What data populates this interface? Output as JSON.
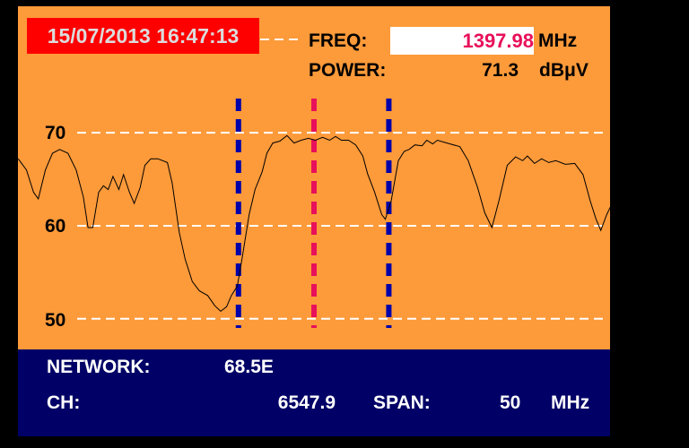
{
  "header": {
    "timestamp": "15/07/2013 16:47:13",
    "freq_label": "FREQ:",
    "freq_value": "1397.98",
    "freq_unit": "MHz",
    "power_label": "POWER:",
    "power_value": "71.3",
    "power_unit": "dBμV"
  },
  "footer": {
    "network_label": "NETWORK:",
    "network_value": "68.5E",
    "ch_label": "CH:",
    "ch_value": "6547.9",
    "span_label": "SPAN:",
    "span_value": "50",
    "span_unit": "MHz"
  },
  "colors": {
    "background": "#fd9a3a",
    "info_panel": "#000066",
    "timestamp_bg": "#ff0000",
    "freq_value": "#e8105a",
    "marker_side": "#0000aa",
    "marker_center": "#e8105a",
    "trace": "#000000",
    "grid": "#ffffff"
  },
  "chart_data": {
    "type": "line",
    "xlim": [
      1372.98,
      1422.98
    ],
    "ylim": [
      46.7,
      83.6
    ],
    "grid": true,
    "y_ticks": [
      {
        "value": 70,
        "label": "70"
      },
      {
        "value": 60,
        "label": "60"
      },
      {
        "value": 50,
        "label": "50"
      }
    ],
    "markers": [
      {
        "x": 1391.6,
        "role": "side",
        "color": "#0000aa"
      },
      {
        "x": 1397.98,
        "role": "center",
        "color": "#e8105a"
      },
      {
        "x": 1404.3,
        "role": "side",
        "color": "#0000aa"
      }
    ],
    "x": [
      1373.0,
      1373.7,
      1374.3,
      1374.7,
      1375.3,
      1375.9,
      1376.5,
      1377.2,
      1377.9,
      1378.5,
      1378.9,
      1379.3,
      1379.8,
      1380.2,
      1380.6,
      1381.0,
      1381.5,
      1381.9,
      1382.4,
      1382.8,
      1383.3,
      1383.7,
      1384.2,
      1384.8,
      1385.6,
      1386.0,
      1386.6,
      1387.1,
      1387.7,
      1388.3,
      1389.0,
      1389.6,
      1390.1,
      1390.6,
      1391.0,
      1391.5,
      1391.9,
      1392.5,
      1393.0,
      1393.6,
      1394.0,
      1394.5,
      1395.1,
      1395.7,
      1396.3,
      1396.9,
      1397.5,
      1398.1,
      1398.7,
      1399.3,
      1399.8,
      1400.3,
      1400.9,
      1401.5,
      1402.1,
      1402.5,
      1403.1,
      1403.7,
      1404.0,
      1404.5,
      1405.1,
      1405.6,
      1406.0,
      1406.5,
      1407.1,
      1407.5,
      1408.0,
      1408.4,
      1409.2,
      1410.3,
      1411.0,
      1411.8,
      1412.4,
      1413.0,
      1413.6,
      1414.3,
      1415.0,
      1415.6,
      1416.0,
      1416.6,
      1417.2,
      1417.8,
      1418.4,
      1419.2,
      1420.0,
      1420.7,
      1421.3,
      1421.8,
      1422.2,
      1422.7,
      1423.0
    ],
    "y": [
      67.2,
      66.0,
      63.6,
      62.9,
      66.0,
      67.8,
      68.2,
      67.8,
      66.0,
      63.1,
      59.8,
      59.8,
      63.6,
      64.3,
      63.9,
      65.3,
      63.9,
      65.5,
      63.6,
      62.4,
      64.1,
      66.5,
      67.2,
      67.2,
      66.8,
      64.6,
      59.3,
      56.4,
      54.0,
      53.0,
      52.5,
      51.4,
      50.8,
      51.3,
      52.5,
      53.5,
      56.4,
      61.2,
      63.9,
      65.8,
      67.8,
      68.9,
      69.1,
      69.7,
      68.9,
      69.2,
      69.4,
      69.2,
      69.5,
      69.2,
      69.6,
      69.2,
      69.2,
      68.7,
      67.5,
      65.6,
      63.6,
      61.2,
      60.7,
      62.7,
      67.0,
      68.0,
      68.2,
      68.7,
      68.6,
      69.2,
      68.8,
      69.2,
      68.9,
      68.5,
      67.0,
      64.1,
      61.4,
      59.8,
      62.7,
      66.5,
      67.4,
      67.0,
      67.5,
      66.7,
      67.2,
      66.8,
      67.0,
      66.6,
      66.7,
      65.5,
      62.7,
      60.7,
      59.5,
      61.2,
      62.0
    ]
  }
}
